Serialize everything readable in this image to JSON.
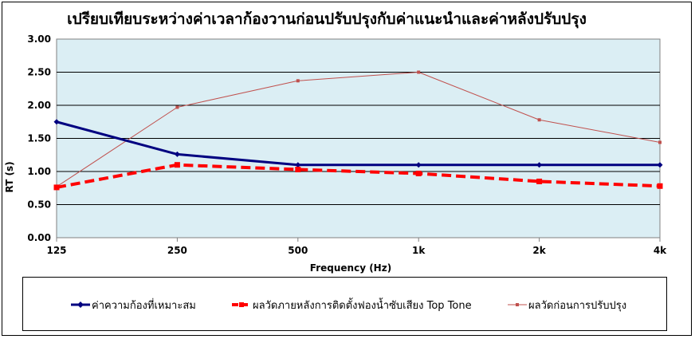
{
  "chart_data": {
    "type": "line",
    "title": "เปรียบเทียบระหว่างค่าเวลาก้องวานก่อนปรับปรุงกับค่าแนะนำและค่าหลังปรับปรุง",
    "xlabel": "Frequency (Hz)",
    "ylabel": "RT (s)",
    "categories": [
      "125",
      "250",
      "500",
      "1k",
      "2k",
      "4k"
    ],
    "ylim": [
      0,
      3
    ],
    "yticks": [
      "0.00",
      "0.50",
      "1.00",
      "1.50",
      "2.00",
      "2.50",
      "3.00"
    ],
    "ytick_values": [
      0,
      0.5,
      1,
      1.5,
      2,
      2.5,
      3
    ],
    "grid": true,
    "legend_position": "bottom",
    "plot_background": "#dbeef4",
    "series": [
      {
        "name": "ค่าความก้องที่เหมาะสม",
        "values": [
          1.75,
          1.26,
          1.1,
          1.1,
          1.1,
          1.1
        ],
        "color": "#000080",
        "style": "solid",
        "width": 3,
        "marker": "diamond"
      },
      {
        "name": "ผลวัดภายหลังการติดตั้งฟองน้ำซับเสียง Top Tone",
        "values": [
          0.76,
          1.1,
          1.03,
          0.97,
          0.85,
          0.78
        ],
        "color": "#ff0000",
        "style": "dashed",
        "width": 4,
        "marker": "square"
      },
      {
        "name": "ผลวัดก่อนการปรับปรุง",
        "values": [
          0.77,
          1.97,
          2.37,
          2.5,
          1.78,
          1.44
        ],
        "color": "#c0504d",
        "style": "solid",
        "width": 1,
        "marker": "square"
      }
    ]
  }
}
